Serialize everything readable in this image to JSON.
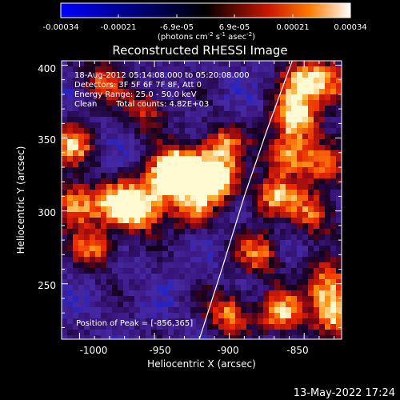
{
  "title": "Reconstructed RHESSI Image",
  "colorbar": {
    "tick_labels": [
      "-0.00034",
      "-0.00021",
      "-6.9e-05",
      "6.9e-05",
      "0.00021",
      "0.00034"
    ],
    "unit_label_parts": [
      "(photons cm",
      "-2",
      " s",
      "-1",
      " asec",
      "-2",
      ")"
    ]
  },
  "info": {
    "time": "18-Aug-2012 05:14:08.000 to 05:20:08.000",
    "detectors": "Detectors: 3F 5F 6F 7F 8F, Att 0",
    "energy": "Energy Range: 25.0 - 50.0 keV",
    "method": "Clean",
    "counts": "Total counts: 4.82E+03"
  },
  "peak": "Position of Peak = [-856,365]",
  "axes": {
    "xlabel": "Heliocentric X (arcsec)",
    "ylabel": "Heliocentric Y (arcsec)",
    "xticks": [
      "-1000",
      "-950",
      "-900",
      "-850"
    ],
    "yticks": [
      "250",
      "300",
      "350",
      "400"
    ],
    "xlim": [
      -1012,
      -825
    ],
    "ylim": [
      212,
      403
    ]
  },
  "timestamp": "13-May-2022 17:24",
  "limb_curve": [
    [
      -920,
      212
    ],
    [
      -905,
      260
    ],
    [
      -890,
      310
    ],
    [
      -875,
      355
    ],
    [
      -858,
      403
    ]
  ],
  "hot_spots": [
    {
      "x": -1005,
      "y": 345,
      "level": 0.8
    },
    {
      "x": -1003,
      "y": 305,
      "level": 0.9
    },
    {
      "x": -990,
      "y": 275,
      "level": 0.7
    },
    {
      "x": -985,
      "y": 390,
      "level": 0.6
    },
    {
      "x": -975,
      "y": 305,
      "level": 0.8
    },
    {
      "x": -960,
      "y": 300,
      "level": 0.9
    },
    {
      "x": -945,
      "y": 318,
      "level": 0.85
    },
    {
      "x": -935,
      "y": 330,
      "level": 0.9
    },
    {
      "x": -920,
      "y": 325,
      "level": 0.95
    },
    {
      "x": -905,
      "y": 320,
      "level": 0.8
    },
    {
      "x": -925,
      "y": 300,
      "level": 0.6
    },
    {
      "x": -955,
      "y": 370,
      "level": 0.6
    },
    {
      "x": -905,
      "y": 345,
      "level": 0.7
    },
    {
      "x": -870,
      "y": 310,
      "level": 0.75
    },
    {
      "x": -860,
      "y": 340,
      "level": 0.85
    },
    {
      "x": -856,
      "y": 365,
      "level": 1.0
    },
    {
      "x": -850,
      "y": 390,
      "level": 0.9
    },
    {
      "x": -845,
      "y": 300,
      "level": 0.7
    },
    {
      "x": -835,
      "y": 250,
      "level": 0.8
    },
    {
      "x": -830,
      "y": 230,
      "level": 0.9
    },
    {
      "x": -865,
      "y": 230,
      "level": 0.85
    },
    {
      "x": -880,
      "y": 270,
      "level": 0.7
    },
    {
      "x": -900,
      "y": 230,
      "level": 0.75
    },
    {
      "x": -830,
      "y": 385,
      "level": 0.7
    },
    {
      "x": -835,
      "y": 330,
      "level": 0.65
    }
  ]
}
